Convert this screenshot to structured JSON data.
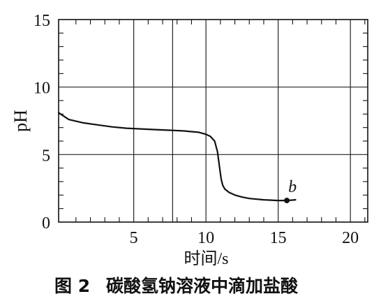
{
  "chart_data": {
    "type": "line",
    "xlabel": "时间/s",
    "ylabel": "pH",
    "xlim": [
      -0.2,
      21.2
    ],
    "ylim": [
      0,
      15
    ],
    "xticks": [
      5,
      10,
      15,
      20
    ],
    "yticks": [
      0,
      5,
      10,
      15
    ],
    "grid": true,
    "caption": {
      "figure": "图 2",
      "text": "碳酸氢钠溶液中滴加盐酸"
    },
    "series": [
      {
        "name": "",
        "x": [
          -0.2,
          0.5,
          1.5,
          2.5,
          3.5,
          4.5,
          5.5,
          6.5,
          7.5,
          8.5,
          9.0,
          9.5,
          10.0,
          10.3,
          10.6,
          10.8,
          10.95,
          11.05,
          11.15,
          11.3,
          11.6,
          12.0,
          12.5,
          13.0,
          14.0,
          15.0,
          15.6,
          16.2
        ],
        "y": [
          8.1,
          7.6,
          7.35,
          7.2,
          7.05,
          6.95,
          6.9,
          6.85,
          6.8,
          6.75,
          6.7,
          6.65,
          6.5,
          6.35,
          6.0,
          5.2,
          4.0,
          3.2,
          2.75,
          2.45,
          2.2,
          2.0,
          1.85,
          1.75,
          1.65,
          1.6,
          1.6,
          1.65
        ]
      }
    ],
    "annotations": [
      {
        "label": "b",
        "x": 15.6,
        "y": 1.6
      }
    ]
  }
}
